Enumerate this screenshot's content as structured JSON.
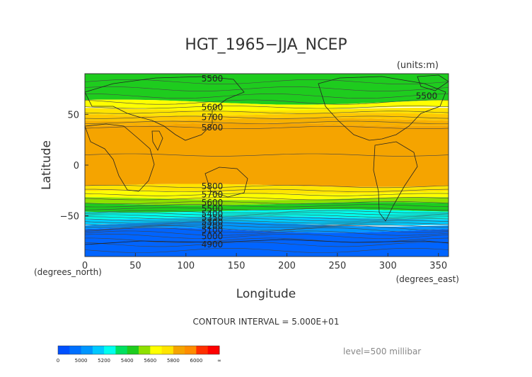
{
  "chart_data": {
    "type": "heatmap",
    "title": "HGT_1965−JJA_NCEP",
    "units": "(units:m)",
    "xlabel": "Longitude",
    "ylabel": "Latitude",
    "x_unit": "(degrees_east)",
    "y_unit": "(degrees_north)",
    "xlim": [
      0,
      360
    ],
    "ylim": [
      -90,
      90
    ],
    "x_ticks": [
      0,
      50,
      100,
      150,
      200,
      250,
      300,
      350
    ],
    "y_ticks": [
      50,
      0,
      -50
    ],
    "contour_interval_text": "CONTOUR INTERVAL = 5.000E+01",
    "level_text": "level=500 millibar",
    "contour_labels": [
      {
        "text": "5500",
        "lat": 85
      },
      {
        "text": "5500",
        "lat": 68
      },
      {
        "text": "5600",
        "lat": 57
      },
      {
        "text": "5700",
        "lat": 47
      },
      {
        "text": "5800",
        "lat": 37
      },
      {
        "text": "5800",
        "lat": -21
      },
      {
        "text": "5700",
        "lat": -29
      },
      {
        "text": "5600",
        "lat": -37
      },
      {
        "text": "5500",
        "lat": -43
      },
      {
        "text": "5400",
        "lat": -48
      },
      {
        "text": "5350",
        "lat": -52
      },
      {
        "text": "5300",
        "lat": -56
      },
      {
        "text": "5200",
        "lat": -60
      },
      {
        "text": "5100",
        "lat": -64
      },
      {
        "text": "5000",
        "lat": -70
      },
      {
        "text": "4900",
        "lat": -78
      }
    ],
    "bands": [
      {
        "from": 90,
        "to": 62,
        "color": "#1ecc1e",
        "value": "5500-5600"
      },
      {
        "from": 62,
        "to": 55,
        "color": "#ffff00",
        "value": "5600-5700"
      },
      {
        "from": 55,
        "to": 50,
        "color": "#ffe400",
        "value": "5700-5750"
      },
      {
        "from": 50,
        "to": 45,
        "color": "#ffc800",
        "value": "5750-5800"
      },
      {
        "from": 45,
        "to": 40,
        "color": "#f7b000",
        "value": "5800-5850"
      },
      {
        "from": 40,
        "to": -20,
        "color": "#f5a400",
        "value": ">5850"
      },
      {
        "from": -20,
        "to": -27,
        "color": "#ffe400",
        "value": "5800-5850"
      },
      {
        "from": -27,
        "to": -33,
        "color": "#ffff00",
        "value": "5700-5800"
      },
      {
        "from": -33,
        "to": -38,
        "color": "#8ee000",
        "value": "5600-5700"
      },
      {
        "from": -38,
        "to": -45,
        "color": "#1ecc1e",
        "value": "5500-5600"
      },
      {
        "from": -45,
        "to": -52,
        "color": "#00ffee",
        "value": "5400-5500"
      },
      {
        "from": -52,
        "to": -58,
        "color": "#00ccff",
        "value": "5300-5400"
      },
      {
        "from": -58,
        "to": -64,
        "color": "#0096ff",
        "value": "5200-5300"
      },
      {
        "from": -64,
        "to": -90,
        "color": "#0064ff",
        "value": "<5200"
      }
    ],
    "colorbar": {
      "labels": [
        "0",
        "5000",
        "5200",
        "5400",
        "5600",
        "5800",
        "6000",
        "∞"
      ],
      "colors": [
        "#0050ff",
        "#0070ff",
        "#0096ff",
        "#00c8ff",
        "#00ffee",
        "#00e060",
        "#1ecc1e",
        "#8ee000",
        "#ffff00",
        "#ffe400",
        "#f5a400",
        "#ff8c00",
        "#ff3000",
        "#ff0000"
      ]
    }
  }
}
